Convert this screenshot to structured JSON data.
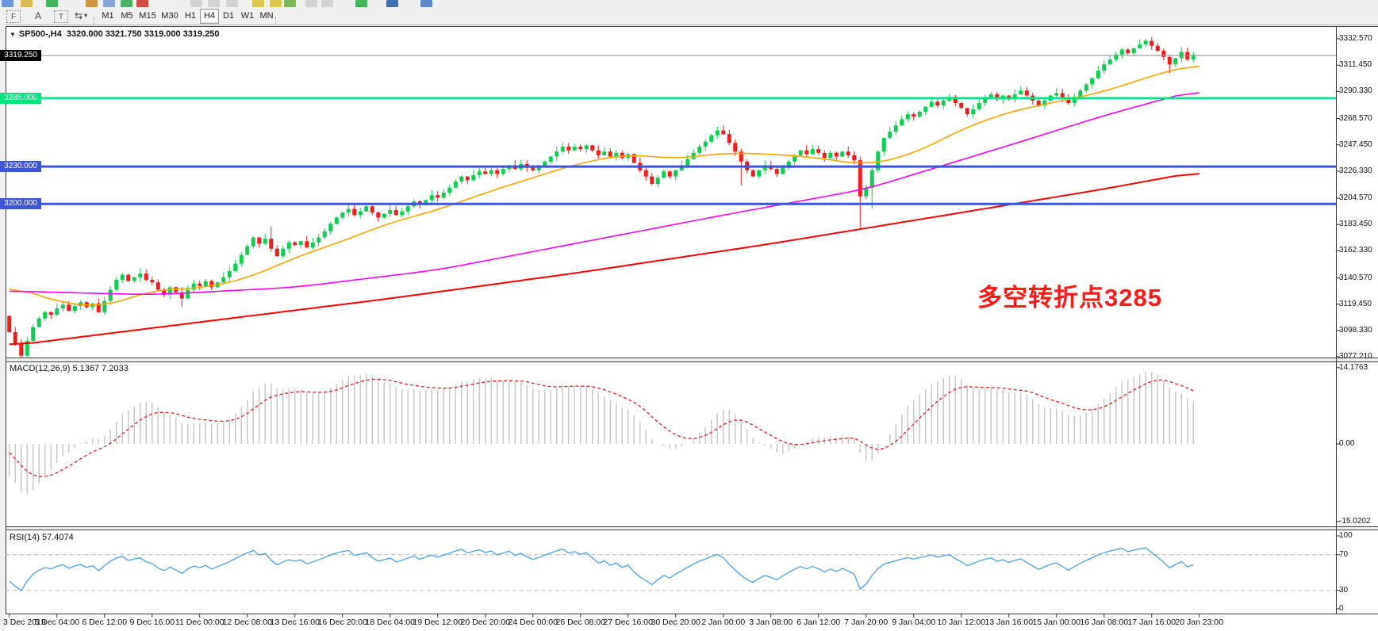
{
  "toolbar": {
    "top_icons": [
      {
        "name": "new-chart-icon",
        "color": "#5b8dd9"
      },
      {
        "name": "zoom-icon",
        "color": "#d9b441"
      },
      {
        "name": "new-order-icon",
        "color": "#2fae4a"
      },
      {
        "name": "market-watch-icon",
        "color": "#c98a2e"
      },
      {
        "name": "print-icon",
        "color": "#7a9fd4"
      },
      {
        "name": "autotrading-icon",
        "color": "#3aa85c"
      },
      {
        "name": "stop-icon",
        "color": "#d43a2f"
      },
      {
        "name": "bar-chart-button",
        "color": "#cfcfcf"
      },
      {
        "name": "candle-chart-button",
        "color": "#cfcfcf"
      },
      {
        "name": "line-chart-button",
        "color": "#cfcfcf"
      },
      {
        "name": "draw-pencil-icon",
        "color": "#d9c23a"
      },
      {
        "name": "draw-pencil2-icon",
        "color": "#d9c23a"
      },
      {
        "name": "palette-icon",
        "color": "#6db04a"
      },
      {
        "name": "zoom-in-button",
        "color": "#cfcfcf"
      },
      {
        "name": "zoom-out-button",
        "color": "#cfcfcf"
      },
      {
        "name": "add-indicator-icon",
        "color": "#2fae4a"
      },
      {
        "name": "help-icon",
        "color": "#2f5fae"
      },
      {
        "name": "window-cascade-icon",
        "color": "#4a7ec9"
      }
    ],
    "tools": [
      {
        "name": "grid-font-icon",
        "glyph": "F"
      },
      {
        "name": "label-a-icon",
        "glyph": "A"
      },
      {
        "name": "text-box-icon",
        "glyph": "T"
      },
      {
        "name": "cycle-symbols-icon",
        "glyph": "⇆",
        "caret": "▾"
      }
    ],
    "timeframes": [
      {
        "label": "M1",
        "active": false
      },
      {
        "label": "M5",
        "active": false
      },
      {
        "label": "M15",
        "active": false
      },
      {
        "label": "M30",
        "active": false
      },
      {
        "label": "H1",
        "active": false
      },
      {
        "label": "H4",
        "active": true
      },
      {
        "label": "D1",
        "active": false
      },
      {
        "label": "W1",
        "active": false
      },
      {
        "label": "MN",
        "active": false
      }
    ]
  },
  "chart": {
    "title_marker": "▼",
    "symbol_period": "SP500-,H4",
    "ohlc_text": "3320.000 3321.750 3319.000 3319.250",
    "open": "3320.000",
    "high": "3321.750",
    "low": "3319.000",
    "close": "3319.250"
  },
  "annotation": {
    "text": "多空转折点3285",
    "color": "#ff1a1a"
  },
  "price_axis": {
    "ticks": [
      "3332.570",
      "3311.450",
      "3290.330",
      "3268.570",
      "3247.450",
      "3226.330",
      "3204.570",
      "3183.450",
      "3162.330",
      "3140.570",
      "3119.450",
      "3098.330",
      "3077.210"
    ],
    "current_price": {
      "label": "3319.250",
      "price": 3319.25,
      "line_color": "#8c8c8c",
      "badge_bg": "#000000"
    },
    "levels": [
      {
        "label": "3285.000",
        "price": 3285,
        "color": "#00e57e",
        "width": 2.5
      },
      {
        "label": "3230.000",
        "price": 3230,
        "color": "#3d55d8",
        "width": 3
      },
      {
        "label": "3200.000",
        "price": 3200,
        "color": "#3d55d8",
        "width": 3
      }
    ]
  },
  "macd": {
    "label": "MACD(12,26,9) 5.1367 7.2033",
    "params": "12,26,9",
    "value": "5.1367",
    "signal_value": "7.2033",
    "axis_ticks": [
      "14.1763",
      "0.00",
      "-15.0202"
    ],
    "histogram_color": "#c8c8c8",
    "signal_color": "#e02020"
  },
  "rsi": {
    "label": "RSI(14) 57.4074",
    "period": "14",
    "value": "57.4074",
    "axis_ticks": [
      "100",
      "70",
      "30",
      "0"
    ],
    "levels": [
      70,
      30
    ],
    "line_color": "#4ba2e8"
  },
  "time_axis": {
    "labels": [
      "3 Dec 2019",
      "5 Dec 04:00",
      "6 Dec 12:00",
      "9 Dec 16:00",
      "11 Dec 00:00",
      "12 Dec 08:00",
      "13 Dec 16:00",
      "16 Dec 20:00",
      "18 Dec 04:00",
      "19 Dec 12:00",
      "20 Dec 20:00",
      "24 Dec 00:00",
      "26 Dec 08:00",
      "27 Dec 16:00",
      "30 Dec 20:00",
      "2 Jan 00:00",
      "3 Jan 08:00",
      "6 Jan 12:00",
      "7 Jan 20:00",
      "9 Jan 04:00",
      "10 Jan 12:00",
      "13 Jan 16:00",
      "15 Jan 00:00",
      "16 Jan 08:00",
      "17 Jan 16:00",
      "20 Jan 23:00"
    ]
  },
  "chart_data": {
    "type": "candlestick",
    "symbol": "SP500-",
    "timeframe": "H4",
    "price_range": {
      "top": 3342.7,
      "bottom": 3075.0
    },
    "up_color": "#0fce52",
    "down_color": "#f01d1d",
    "first_open": 3110,
    "closes": [
      3097,
      3088,
      3078,
      3090,
      3101,
      3108,
      3113,
      3111,
      3116,
      3119,
      3114,
      3118,
      3121,
      3117,
      3120,
      3113,
      3122,
      3131,
      3139,
      3143,
      3138,
      3141,
      3144,
      3139,
      3137,
      3131,
      3127,
      3133,
      3129,
      3124,
      3131,
      3136,
      3134,
      3138,
      3133,
      3137,
      3141,
      3146,
      3152,
      3159,
      3166,
      3173,
      3168,
      3172,
      3164,
      3158,
      3164,
      3169,
      3167,
      3170,
      3165,
      3169,
      3173,
      3178,
      3184,
      3189,
      3193,
      3196,
      3191,
      3194,
      3198,
      3193,
      3189,
      3192,
      3195,
      3191,
      3194,
      3198,
      3202,
      3199,
      3203,
      3207,
      3205,
      3209,
      3213,
      3218,
      3222,
      3219,
      3223,
      3226,
      3224,
      3227,
      3224,
      3228,
      3231,
      3228,
      3232,
      3229,
      3227,
      3230,
      3234,
      3238,
      3242,
      3246,
      3243,
      3246,
      3244,
      3247,
      3243,
      3239,
      3242,
      3238,
      3241,
      3237,
      3240,
      3233,
      3227,
      3222,
      3216,
      3221,
      3226,
      3222,
      3227,
      3231,
      3236,
      3241,
      3246,
      3250,
      3255,
      3259,
      3256,
      3249,
      3242,
      3234,
      3227,
      3222,
      3227,
      3231,
      3228,
      3224,
      3229,
      3234,
      3239,
      3243,
      3240,
      3244,
      3241,
      3237,
      3241,
      3238,
      3242,
      3239,
      3235,
      3206,
      3213,
      3227,
      3242,
      3253,
      3258,
      3263,
      3268,
      3272,
      3270,
      3274,
      3278,
      3282,
      3279,
      3283,
      3286,
      3281,
      3277,
      3272,
      3276,
      3281,
      3285,
      3288,
      3284,
      3287,
      3284,
      3288,
      3291,
      3287,
      3283,
      3279,
      3283,
      3287,
      3289,
      3285,
      3281,
      3286,
      3291,
      3296,
      3301,
      3307,
      3312,
      3316,
      3320,
      3324,
      3321,
      3325,
      3328,
      3331,
      3327,
      3323,
      3318,
      3312,
      3317,
      3322,
      3316,
      3319.25
    ],
    "warmup_closes": [
      3094,
      3103,
      3110,
      3116,
      3121,
      3127,
      3133,
      3138,
      3141,
      3144,
      3147,
      3150,
      3152,
      3154,
      3153,
      3150,
      3146,
      3141,
      3135,
      3128,
      3120,
      3112,
      3105,
      3110,
      3115,
      3112,
      3108,
      3104,
      3100,
      3098
    ],
    "wick_overrides": {
      "2": {
        "low": 3076
      },
      "29": {
        "low": 3117
      },
      "44": {
        "high": 3182
      },
      "119": {
        "high": 3262
      },
      "123": {
        "low": 3215
      },
      "143": {
        "low": 3181
      },
      "145": {
        "low": 3196
      },
      "191": {
        "high": 3332.5
      },
      "195": {
        "low": 3305
      }
    },
    "ma_lines": [
      {
        "name": "ma-fast-orange",
        "color": "#ffa500",
        "width": 1.6,
        "points": [
          [
            0,
            3135
          ],
          [
            8,
            3121
          ],
          [
            16,
            3117
          ],
          [
            24,
            3131
          ],
          [
            32,
            3132
          ],
          [
            40,
            3140
          ],
          [
            48,
            3157
          ],
          [
            56,
            3170
          ],
          [
            64,
            3185
          ],
          [
            72,
            3195
          ],
          [
            80,
            3209
          ],
          [
            88,
            3221
          ],
          [
            96,
            3233
          ],
          [
            104,
            3240
          ],
          [
            112,
            3236
          ],
          [
            120,
            3241
          ],
          [
            128,
            3240
          ],
          [
            136,
            3237
          ],
          [
            144,
            3231
          ],
          [
            152,
            3240
          ],
          [
            160,
            3260
          ],
          [
            168,
            3274
          ],
          [
            176,
            3282
          ],
          [
            184,
            3290
          ],
          [
            192,
            3303
          ],
          [
            200,
            3313
          ]
        ]
      },
      {
        "name": "ma-mid-magenta",
        "color": "#ff00ff",
        "width": 1.6,
        "points": [
          [
            0,
            3130
          ],
          [
            24,
            3127
          ],
          [
            48,
            3133
          ],
          [
            72,
            3147
          ],
          [
            96,
            3169
          ],
          [
            120,
            3191
          ],
          [
            144,
            3212
          ],
          [
            168,
            3247
          ],
          [
            184,
            3271
          ],
          [
            200,
            3292
          ]
        ]
      },
      {
        "name": "ma-slow-red",
        "color": "#ff0000",
        "width": 2,
        "points": [
          [
            0,
            3086
          ],
          [
            32,
            3105
          ],
          [
            64,
            3124
          ],
          [
            96,
            3145
          ],
          [
            128,
            3168
          ],
          [
            160,
            3193
          ],
          [
            184,
            3212
          ],
          [
            200,
            3226
          ]
        ]
      }
    ],
    "macd": {
      "fast": 12,
      "slow": 26,
      "signal": 9,
      "current_macd": 5.1367,
      "current_signal": 7.2033,
      "axis_max": 14.1763,
      "axis_min": -15.0202
    },
    "rsi": {
      "period": 14,
      "current": 57.4074,
      "range": [
        0,
        100
      ],
      "levels": [
        70,
        30
      ]
    }
  }
}
